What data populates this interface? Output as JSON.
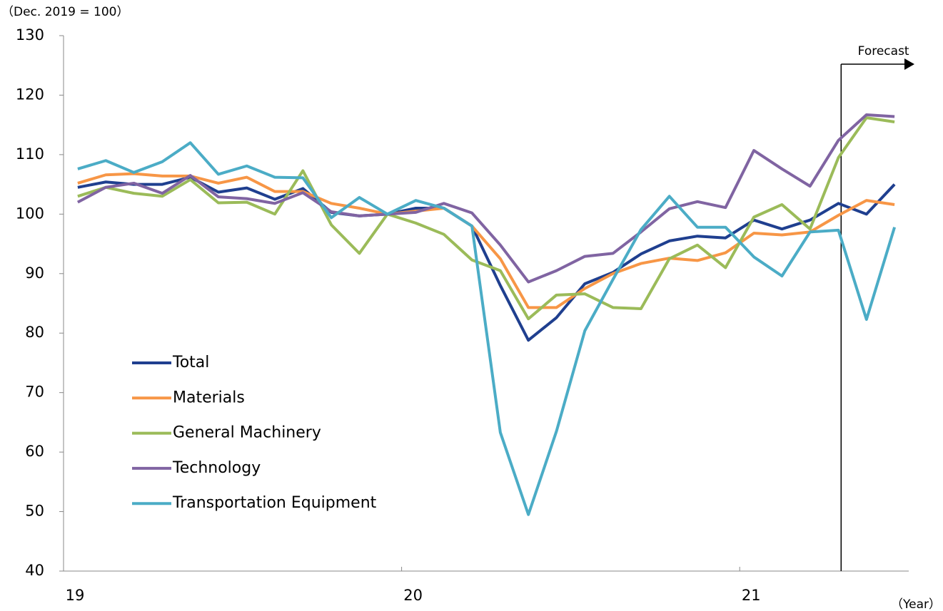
{
  "chart_data": {
    "type": "line",
    "unit_label": "（Dec. 2019 = 100）",
    "x_label": "（Year）",
    "x": [
      2019.042,
      2019.125,
      2019.208,
      2019.292,
      2019.375,
      2019.458,
      2019.542,
      2019.625,
      2019.708,
      2019.792,
      2019.875,
      2019.958,
      2020.042,
      2020.125,
      2020.208,
      2020.292,
      2020.375,
      2020.458,
      2020.542,
      2020.625,
      2020.708,
      2020.792,
      2020.875,
      2020.958,
      2021.042,
      2021.125,
      2021.208,
      2021.292,
      2021.375,
      2021.458
    ],
    "xlim": [
      2019,
      2021.5
    ],
    "xticks": [
      {
        "value": 2019,
        "label": "19"
      },
      {
        "value": 2020,
        "label": "20"
      },
      {
        "value": 2021,
        "label": "21"
      }
    ],
    "ylim": [
      40,
      130
    ],
    "yticks": [
      40,
      50,
      60,
      70,
      80,
      90,
      100,
      110,
      120,
      130
    ],
    "legend": "lower left",
    "forecast": {
      "label": "Forecast",
      "x": 2021.3
    },
    "series": [
      {
        "name": "Total",
        "color": "#1f3f8f",
        "values": [
          104.5,
          105.4,
          105,
          105,
          106.2,
          103.7,
          104.4,
          102.5,
          104.3,
          100.3,
          99.7,
          100,
          101,
          101,
          98,
          88,
          78.8,
          82.6,
          88.3,
          90.2,
          93.3,
          95.5,
          96.3,
          96,
          99,
          97.5,
          99,
          101.8,
          100,
          105
        ]
      },
      {
        "name": "Materials",
        "color": "#f79646",
        "values": [
          105.2,
          106.6,
          106.8,
          106.4,
          106.4,
          105.2,
          106.2,
          103.8,
          103.8,
          101.8,
          101,
          100,
          100.5,
          101,
          98,
          92.5,
          84.3,
          84.3,
          87.5,
          90,
          91.7,
          92.6,
          92.2,
          93.5,
          96.8,
          96.5,
          97,
          99.8,
          102.3,
          101.6
        ]
      },
      {
        "name": "General Machinery",
        "color": "#9bbb59",
        "values": [
          103,
          104.5,
          103.5,
          103,
          105.8,
          101.9,
          102,
          100,
          107.3,
          98.2,
          93.4,
          100,
          98.5,
          96.6,
          92.3,
          90.5,
          82.4,
          86.4,
          86.6,
          84.3,
          84.1,
          92.5,
          94.8,
          91,
          99.5,
          101.6,
          97.5,
          109.5,
          116.2,
          115.5
        ]
      },
      {
        "name": "Technology",
        "color": "#8064a2",
        "values": [
          102,
          104.5,
          105.2,
          103.5,
          106.5,
          102.9,
          102.6,
          101.8,
          103.6,
          100.4,
          99.7,
          100,
          100.3,
          101.8,
          100.2,
          94.8,
          88.6,
          90.5,
          92.9,
          93.4,
          97,
          100.9,
          102.1,
          101.1,
          110.7,
          107.6,
          104.7,
          112.4,
          116.7,
          116.4
        ]
      },
      {
        "name": "Transportation Equipment",
        "color": "#4bacc6",
        "values": [
          107.6,
          109,
          107,
          108.8,
          112,
          106.7,
          108.1,
          106.2,
          106.1,
          99.4,
          102.8,
          100,
          102.3,
          101,
          98,
          63.3,
          49.5,
          63.5,
          80.4,
          89,
          97.4,
          103,
          97.8,
          97.8,
          92.8,
          89.6,
          97,
          97.3,
          82.3,
          97.8
        ]
      }
    ]
  }
}
